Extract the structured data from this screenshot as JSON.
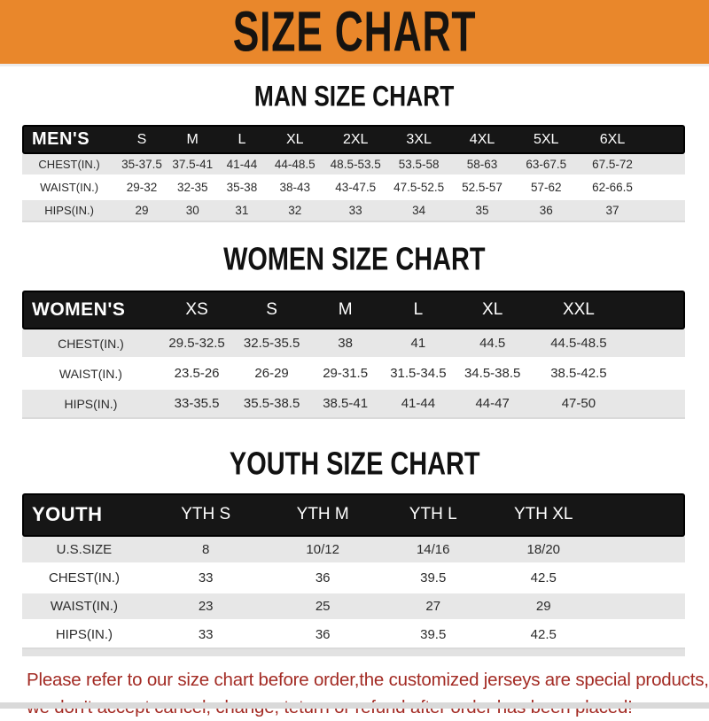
{
  "banner": {
    "title": "SIZE CHART",
    "bg_color": "#E9872B"
  },
  "colors": {
    "header_bar": "#161616",
    "row_alt": "#E7E7E7",
    "footer_text": "#A32B24"
  },
  "sections": [
    {
      "id": "men",
      "heading": "MAN SIZE CHART",
      "corner_label": "MEN'S",
      "sizes": [
        "S",
        "M",
        "L",
        "XL",
        "2XL",
        "3XL",
        "4XL",
        "5XL",
        "6XL"
      ],
      "rows": [
        {
          "label": "CHEST(IN.)",
          "values": [
            "35-37.5",
            "37.5-41",
            "41-44",
            "44-48.5",
            "48.5-53.5",
            "53.5-58",
            "58-63",
            "63-67.5",
            "67.5-72"
          ]
        },
        {
          "label": "WAIST(IN.)",
          "values": [
            "29-32",
            "32-35",
            "35-38",
            "38-43",
            "43-47.5",
            "47.5-52.5",
            "52.5-57",
            "57-62",
            "62-66.5"
          ]
        },
        {
          "label": "HIPS(IN.)",
          "values": [
            "29",
            "30",
            "31",
            "32",
            "33",
            "34",
            "35",
            "36",
            "37"
          ]
        }
      ]
    },
    {
      "id": "women",
      "heading": "WOMEN SIZE CHART",
      "corner_label": "WOMEN'S",
      "sizes": [
        "XS",
        "S",
        "M",
        "L",
        "XL",
        "XXL"
      ],
      "rows": [
        {
          "label": "CHEST(IN.)",
          "values": [
            "29.5-32.5",
            "32.5-35.5",
            "38",
            "41",
            "44.5",
            "44.5-48.5"
          ]
        },
        {
          "label": "WAIST(IN.)",
          "values": [
            "23.5-26",
            "26-29",
            "29-31.5",
            "31.5-34.5",
            "34.5-38.5",
            "38.5-42.5"
          ]
        },
        {
          "label": "HIPS(IN.)",
          "values": [
            "33-35.5",
            "35.5-38.5",
            "38.5-41",
            "41-44",
            "44-47",
            "47-50"
          ]
        }
      ]
    },
    {
      "id": "youth",
      "heading": "YOUTH SIZE CHART",
      "corner_label": "YOUTH",
      "sizes": [
        "YTH S",
        "YTH M",
        "YTH L",
        "YTH XL"
      ],
      "rows": [
        {
          "label": "U.S.SIZE",
          "values": [
            "8",
            "10/12",
            "14/16",
            "18/20"
          ]
        },
        {
          "label": "CHEST(IN.)",
          "values": [
            "33",
            "36",
            "39.5",
            "42.5"
          ]
        },
        {
          "label": "WAIST(IN.)",
          "values": [
            "23",
            "25",
            "27",
            "29"
          ]
        },
        {
          "label": "HIPS(IN.)",
          "values": [
            "33",
            "36",
            "39.5",
            "42.5"
          ]
        }
      ]
    }
  ],
  "footer": {
    "lines": [
      "Please refer to our size chart before order,the customized jerseys are special products,",
      "we don't accept cancel, change, teturn or refund after order has been placed!"
    ]
  }
}
